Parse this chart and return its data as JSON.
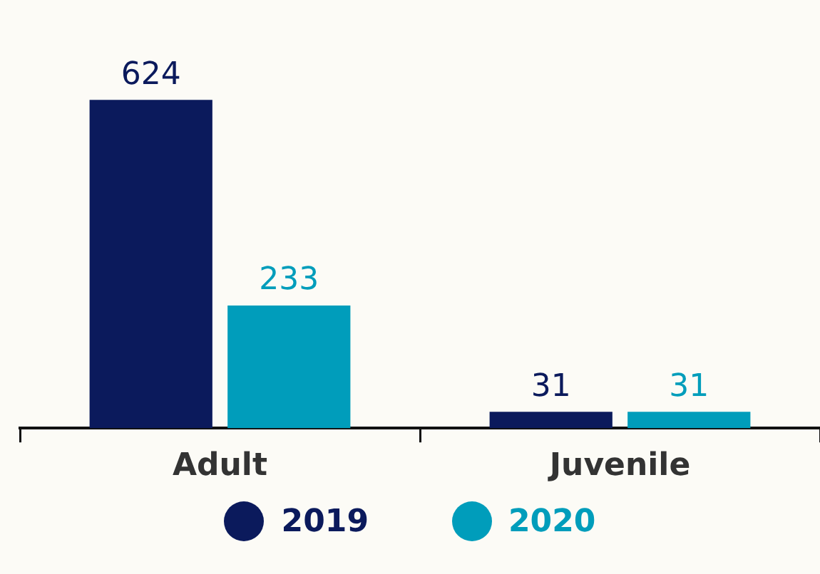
{
  "chart_data": {
    "type": "bar",
    "categories": [
      "Adult",
      "Juvenile"
    ],
    "series": [
      {
        "name": "2019",
        "color": "#0b1a5c",
        "values": [
          624,
          31
        ]
      },
      {
        "name": "2020",
        "color": "#009dbb",
        "values": [
          233,
          31
        ]
      }
    ],
    "data_labels": true,
    "legend": "bottom",
    "grid": false
  }
}
